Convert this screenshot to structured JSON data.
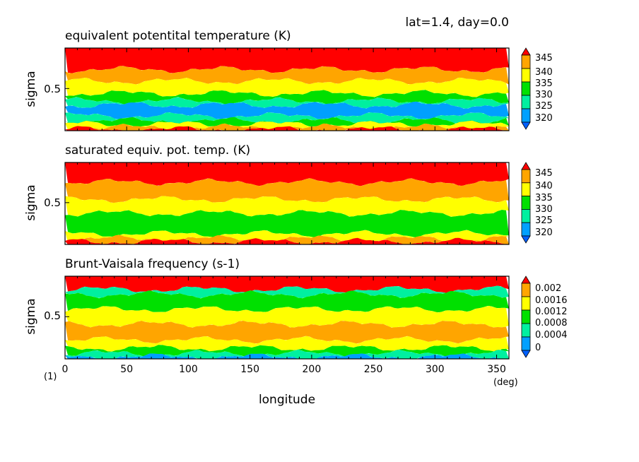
{
  "header": "lat=1.4, day=0.0",
  "corner_label": "(1)",
  "chart_data": [
    {
      "type": "heatmap",
      "title": "equivalent potentital temperature (K)",
      "ylabel": "sigma",
      "ytick": "0.5",
      "colorbar": {
        "labels": [
          "345",
          "340",
          "335",
          "330",
          "325",
          "320"
        ],
        "colors": [
          "#ff0000",
          "#ffa500",
          "#ffff00",
          "#00e000",
          "#00f0a0",
          "#00a0ff",
          "#0060ff"
        ]
      },
      "layers_from_top": [
        {
          "color": "#ff0000",
          "label": ">345"
        },
        {
          "color": "#ffa500",
          "label": "340-345"
        },
        {
          "color": "#ffff00",
          "label": "335-340"
        },
        {
          "color": "#00e000",
          "label": "330-335"
        },
        {
          "color": "#00f0a0",
          "label": "325-330"
        },
        {
          "color": "#00a0ff",
          "label": "320-325"
        },
        {
          "color": "#00f0a0",
          "label": "325-330"
        },
        {
          "color": "#00e000",
          "label": "330-335"
        },
        {
          "color": "#ffff00",
          "label": "335-340"
        },
        {
          "color": "#ffa500",
          "label": "340-345"
        },
        {
          "color": "#ff0000",
          "label": ">345"
        }
      ]
    },
    {
      "type": "heatmap",
      "title": "saturated equiv. pot. temp. (K)",
      "ylabel": "sigma",
      "ytick": "0.5",
      "colorbar": {
        "labels": [
          "345",
          "340",
          "335",
          "330",
          "325",
          "320"
        ],
        "colors": [
          "#ff0000",
          "#ffa500",
          "#ffff00",
          "#00e000",
          "#00f0a0",
          "#00a0ff",
          "#0060ff"
        ]
      },
      "layers_from_top": [
        {
          "color": "#ff0000",
          "label": ">345"
        },
        {
          "color": "#ffa500",
          "label": "340-345"
        },
        {
          "color": "#ffff00",
          "label": "335-340"
        },
        {
          "color": "#00e000",
          "label": "330-335"
        },
        {
          "color": "#ffff00",
          "label": "335-340"
        },
        {
          "color": "#ffa500",
          "label": "340-345"
        },
        {
          "color": "#ff0000",
          "label": ">345"
        }
      ]
    },
    {
      "type": "heatmap",
      "title": "Brunt-Vaisala frequency (s-1)",
      "ylabel": "sigma",
      "ytick": "0.5",
      "xlabel": "longitude",
      "xunit": "(deg)",
      "xticks": [
        "0",
        "50",
        "100",
        "150",
        "200",
        "250",
        "300",
        "350"
      ],
      "xlim": [
        0,
        360
      ],
      "colorbar": {
        "labels": [
          "0.002",
          "0.0016",
          "0.0012",
          "0.0008",
          "0.0004",
          "0"
        ],
        "colors": [
          "#ff0000",
          "#ffa500",
          "#ffff00",
          "#00e000",
          "#00f0a0",
          "#00a0ff",
          "#0060ff"
        ]
      },
      "layers_from_top": [
        {
          "color": "#ff0000",
          "label": ">0.002"
        },
        {
          "color": "#00f0a0",
          "label": "0.0004-0.0008"
        },
        {
          "color": "#00e000",
          "label": "0.0008-0.0012"
        },
        {
          "color": "#ffff00",
          "label": "0.0012-0.0016"
        },
        {
          "color": "#ffa500",
          "label": "0.0016-0.002"
        },
        {
          "color": "#ffff00",
          "label": "0.0012-0.0016"
        },
        {
          "color": "#00e000",
          "label": "0.0008-0.0012"
        },
        {
          "color": "#00f0a0",
          "label": "0.0004-0.0008"
        },
        {
          "color": "#00a0ff",
          "label": "0-0.0004"
        }
      ]
    }
  ]
}
